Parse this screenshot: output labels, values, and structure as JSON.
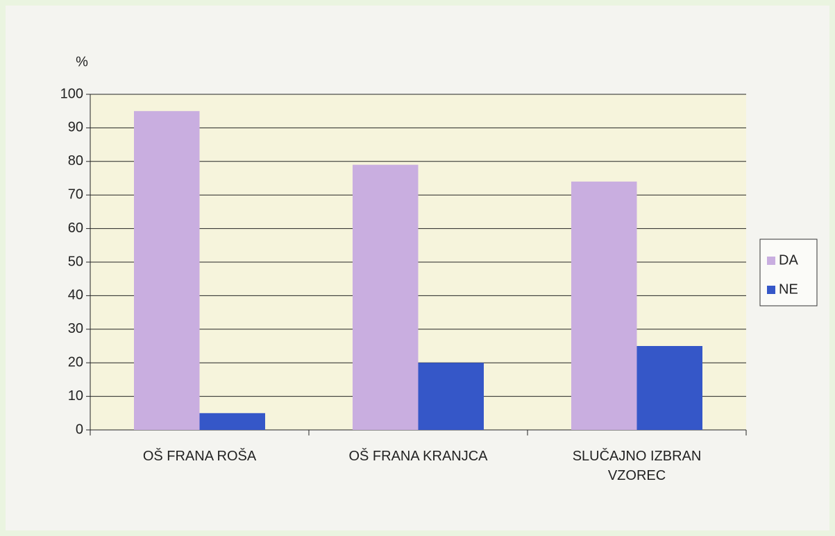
{
  "chart_data": {
    "type": "bar",
    "y_label": "%",
    "categories": [
      "OŠ FRANA ROŠA",
      "OŠ FRANA KRANJCA",
      "SLUČAJNO IZBRAN VZOREC"
    ],
    "series": [
      {
        "name": "DA",
        "color": "#c9aee0",
        "values": [
          95,
          79,
          74
        ]
      },
      {
        "name": "NE",
        "color": "#3557c8",
        "values": [
          5,
          20,
          25
        ]
      }
    ],
    "ylim": [
      0,
      100
    ],
    "yticks": [
      0,
      10,
      20,
      30,
      40,
      50,
      60,
      70,
      80,
      90,
      100
    ],
    "grid": true,
    "legend": "right"
  }
}
